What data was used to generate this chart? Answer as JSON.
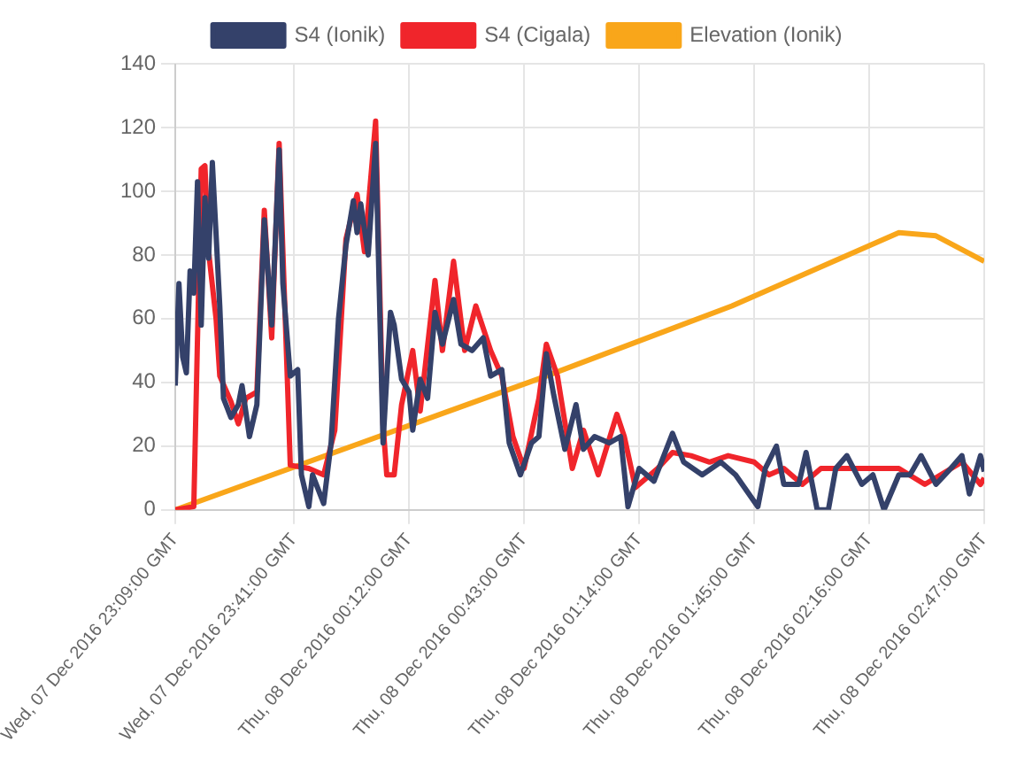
{
  "chart_data": {
    "type": "line",
    "legend": "top",
    "grid": true,
    "marker": "none",
    "line_style": "solid",
    "xlim": [
      "2016-12-07T23:09",
      "2016-12-08T02:47"
    ],
    "xticks": [
      {
        "value": "2016-12-07T23:09",
        "label": "Wed, 07 Dec 2016 23:09:00 GMT"
      },
      {
        "value": "2016-12-07T23:41",
        "label": "Wed, 07 Dec 2016 23:41:00 GMT"
      },
      {
        "value": "2016-12-08T00:12",
        "label": "Thu, 08 Dec 2016 00:12:00 GMT"
      },
      {
        "value": "2016-12-08T00:43",
        "label": "Thu, 08 Dec 2016 00:43:00 GMT"
      },
      {
        "value": "2016-12-08T01:14",
        "label": "Thu, 08 Dec 2016 01:14:00 GMT"
      },
      {
        "value": "2016-12-08T01:45",
        "label": "Thu, 08 Dec 2016 01:45:00 GMT"
      },
      {
        "value": "2016-12-08T02:16",
        "label": "Thu, 08 Dec 2016 02:16:00 GMT"
      },
      {
        "value": "2016-12-08T02:47",
        "label": "Thu, 08 Dec 2016 02:47:00 GMT"
      }
    ],
    "ylim": [
      0,
      140
    ],
    "yticks": [
      0,
      20,
      40,
      60,
      80,
      100,
      120,
      140
    ],
    "series": [
      {
        "name": "S4 (Ionik)",
        "color": "#34416a",
        "x": [
          "2016-12-07T23:09",
          "2016-12-07T23:10",
          "2016-12-07T23:11",
          "2016-12-07T23:12",
          "2016-12-07T23:13",
          "2016-12-07T23:14",
          "2016-12-07T23:15",
          "2016-12-07T23:16",
          "2016-12-07T23:17",
          "2016-12-07T23:18",
          "2016-12-07T23:19",
          "2016-12-07T23:21",
          "2016-12-07T23:22",
          "2016-12-07T23:24",
          "2016-12-07T23:26",
          "2016-12-07T23:27",
          "2016-12-07T23:29",
          "2016-12-07T23:31",
          "2016-12-07T23:33",
          "2016-12-07T23:35",
          "2016-12-07T23:37",
          "2016-12-07T23:38",
          "2016-12-07T23:40",
          "2016-12-07T23:42",
          "2016-12-07T23:43",
          "2016-12-07T23:45",
          "2016-12-07T23:46",
          "2016-12-07T23:49",
          "2016-12-07T23:51",
          "2016-12-07T23:53",
          "2016-12-07T23:55",
          "2016-12-07T23:57",
          "2016-12-07T23:58",
          "2016-12-07T23:59",
          "2016-12-08T00:01",
          "2016-12-08T00:03",
          "2016-12-08T00:05",
          "2016-12-08T00:07",
          "2016-12-08T00:08",
          "2016-12-08T00:10",
          "2016-12-08T00:12",
          "2016-12-08T00:13",
          "2016-12-08T00:15",
          "2016-12-08T00:17",
          "2016-12-08T00:19",
          "2016-12-08T00:21",
          "2016-12-08T00:24",
          "2016-12-08T00:26",
          "2016-12-08T00:29",
          "2016-12-08T00:32",
          "2016-12-08T00:34",
          "2016-12-08T00:37",
          "2016-12-08T00:39",
          "2016-12-08T00:42",
          "2016-12-08T00:45",
          "2016-12-08T00:47",
          "2016-12-08T00:49",
          "2016-12-08T00:51",
          "2016-12-08T00:54",
          "2016-12-08T00:57",
          "2016-12-08T00:59",
          "2016-12-08T01:02",
          "2016-12-08T01:06",
          "2016-12-08T01:09",
          "2016-12-08T01:11",
          "2016-12-08T01:14",
          "2016-12-08T01:18",
          "2016-12-08T01:23",
          "2016-12-08T01:26",
          "2016-12-08T01:31",
          "2016-12-08T01:36",
          "2016-12-08T01:40",
          "2016-12-08T01:46",
          "2016-12-08T01:48",
          "2016-12-08T01:51",
          "2016-12-08T01:53",
          "2016-12-08T01:57",
          "2016-12-08T01:59",
          "2016-12-08T02:02",
          "2016-12-08T02:05",
          "2016-12-08T02:07",
          "2016-12-08T02:10",
          "2016-12-08T02:14",
          "2016-12-08T02:17",
          "2016-12-08T02:20",
          "2016-12-08T02:24",
          "2016-12-08T02:27",
          "2016-12-08T02:30",
          "2016-12-08T02:34",
          "2016-12-08T02:38",
          "2016-12-08T02:41",
          "2016-12-08T02:43",
          "2016-12-08T02:46",
          "2016-12-08T02:47"
        ],
        "values": [
          39,
          71,
          48,
          43,
          75,
          68,
          103,
          58,
          98,
          79,
          109,
          64,
          35,
          29,
          33,
          39,
          23,
          33,
          91,
          58,
          113,
          71,
          42,
          44,
          11,
          1,
          11,
          2,
          21,
          60,
          83,
          97,
          87,
          96,
          80,
          115,
          21,
          62,
          58,
          41,
          37,
          25,
          41,
          35,
          62,
          52,
          66,
          52,
          50,
          54,
          42,
          44,
          21,
          11,
          21,
          23,
          49,
          36,
          19,
          33,
          19,
          23,
          21,
          23,
          1,
          13,
          9,
          24,
          15,
          11,
          15,
          11,
          1,
          13,
          20,
          8,
          8,
          18,
          0,
          0,
          13,
          17,
          8,
          11,
          0,
          11,
          11,
          17,
          8,
          13,
          17,
          5,
          17,
          12
        ]
      },
      {
        "name": "S4 (Cigala)",
        "color": "#f0252b",
        "x": [
          "2016-12-07T23:09",
          "2016-12-07T23:14",
          "2016-12-07T23:16",
          "2016-12-07T23:17",
          "2016-12-07T23:18",
          "2016-12-07T23:20",
          "2016-12-07T23:21",
          "2016-12-07T23:24",
          "2016-12-07T23:26",
          "2016-12-07T23:28",
          "2016-12-07T23:31",
          "2016-12-07T23:33",
          "2016-12-07T23:35",
          "2016-12-07T23:37",
          "2016-12-07T23:39",
          "2016-12-07T23:40",
          "2016-12-07T23:45",
          "2016-12-07T23:49",
          "2016-12-07T23:52",
          "2016-12-07T23:55",
          "2016-12-07T23:58",
          "2016-12-08T00:00",
          "2016-12-08T00:03",
          "2016-12-08T00:05",
          "2016-12-08T00:06",
          "2016-12-08T00:08",
          "2016-12-08T00:10",
          "2016-12-08T00:13",
          "2016-12-08T00:15",
          "2016-12-08T00:19",
          "2016-12-08T00:21",
          "2016-12-08T00:24",
          "2016-12-08T00:27",
          "2016-12-08T00:30",
          "2016-12-08T00:34",
          "2016-12-08T00:37",
          "2016-12-08T00:40",
          "2016-12-08T00:43",
          "2016-12-08T00:47",
          "2016-12-08T00:49",
          "2016-12-08T00:52",
          "2016-12-08T00:56",
          "2016-12-08T00:59",
          "2016-12-08T01:03",
          "2016-12-08T01:08",
          "2016-12-08T01:10",
          "2016-12-08T01:13",
          "2016-12-08T01:19",
          "2016-12-08T01:23",
          "2016-12-08T01:28",
          "2016-12-08T01:33",
          "2016-12-08T01:38",
          "2016-12-08T01:45",
          "2016-12-08T01:49",
          "2016-12-08T01:53",
          "2016-12-08T01:58",
          "2016-12-08T02:03",
          "2016-12-08T02:10",
          "2016-12-08T02:17",
          "2016-12-08T02:24",
          "2016-12-08T02:31",
          "2016-12-08T02:41",
          "2016-12-08T02:46",
          "2016-12-08T02:47"
        ],
        "values": [
          0,
          1,
          107,
          108,
          81,
          60,
          42,
          34,
          27,
          35,
          37,
          94,
          54,
          115,
          48,
          14,
          13,
          11,
          25,
          85,
          99,
          81,
          122,
          27,
          11,
          11,
          33,
          50,
          31,
          72,
          50,
          78,
          50,
          64,
          50,
          42,
          23,
          13,
          35,
          52,
          42,
          13,
          25,
          11,
          30,
          23,
          7,
          13,
          18,
          17,
          15,
          17,
          15,
          11,
          13,
          8,
          13,
          13,
          13,
          13,
          8,
          15,
          8,
          10
        ]
      },
      {
        "name": "Elevation (Ionik)",
        "color": "#f9a61a",
        "x": [
          "2016-12-07T23:09",
          "2016-12-07T23:59",
          "2016-12-08T00:49",
          "2016-12-08T01:39",
          "2016-12-08T02:24",
          "2016-12-08T02:34",
          "2016-12-08T02:47"
        ],
        "values": [
          0,
          21,
          42,
          64,
          87,
          86,
          78
        ]
      }
    ]
  }
}
